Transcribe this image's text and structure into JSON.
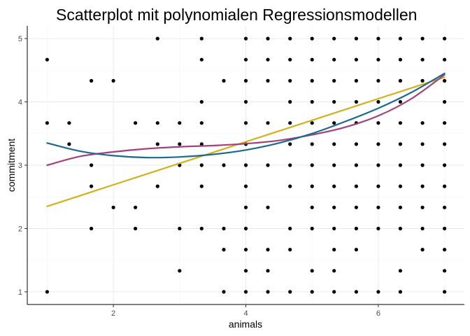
{
  "chart_data": {
    "type": "scatter",
    "title": "Scatterplot mit polynomialen Regressionsmodellen",
    "xlabel": "animals",
    "ylabel": "commitment",
    "xlim": [
      0.7,
      7.3
    ],
    "ylim": [
      0.8,
      5.2
    ],
    "x_ticks": [
      2,
      4,
      6
    ],
    "y_ticks": [
      1,
      2,
      3,
      4,
      5
    ],
    "grid": true,
    "points": [
      [
        1,
        4.667
      ],
      [
        1,
        3.667
      ],
      [
        1,
        1
      ],
      [
        1.333,
        3.667
      ],
      [
        1.333,
        3.333
      ],
      [
        1.667,
        4.333
      ],
      [
        1.667,
        3
      ],
      [
        1.667,
        2.667
      ],
      [
        1.667,
        2
      ],
      [
        2,
        4.333
      ],
      [
        2,
        2.333
      ],
      [
        2.333,
        3.667
      ],
      [
        2.333,
        2.333
      ],
      [
        2.333,
        2
      ],
      [
        2.667,
        5
      ],
      [
        2.667,
        3.667
      ],
      [
        2.667,
        3.333
      ],
      [
        2.667,
        2.667
      ],
      [
        3,
        3.667
      ],
      [
        3,
        3.333
      ],
      [
        3,
        3
      ],
      [
        3,
        2
      ],
      [
        3,
        1.333
      ],
      [
        3.333,
        5
      ],
      [
        3.333,
        4.667
      ],
      [
        3.333,
        4
      ],
      [
        3.333,
        3.667
      ],
      [
        3.333,
        3.333
      ],
      [
        3.333,
        3
      ],
      [
        3.333,
        2.667
      ],
      [
        3.333,
        2
      ],
      [
        3.667,
        4.333
      ],
      [
        3.667,
        3
      ],
      [
        3.667,
        2
      ],
      [
        3.667,
        1.667
      ],
      [
        3.667,
        1
      ],
      [
        4,
        5
      ],
      [
        4,
        4.667
      ],
      [
        4,
        4.333
      ],
      [
        4,
        4
      ],
      [
        4,
        3.667
      ],
      [
        4,
        3.333
      ],
      [
        4,
        3
      ],
      [
        4,
        2.667
      ],
      [
        4,
        2.333
      ],
      [
        4,
        2
      ],
      [
        4,
        1.667
      ],
      [
        4,
        1.333
      ],
      [
        4,
        1
      ],
      [
        4.333,
        5
      ],
      [
        4.333,
        4.667
      ],
      [
        4.333,
        4.333
      ],
      [
        4.333,
        3.667
      ],
      [
        4.333,
        3
      ],
      [
        4.333,
        2.333
      ],
      [
        4.333,
        1.667
      ],
      [
        4.333,
        1.333
      ],
      [
        4.333,
        1
      ],
      [
        4.667,
        5
      ],
      [
        4.667,
        4.667
      ],
      [
        4.667,
        4.333
      ],
      [
        4.667,
        4
      ],
      [
        4.667,
        3.667
      ],
      [
        4.667,
        3.333
      ],
      [
        4.667,
        3
      ],
      [
        4.667,
        2.667
      ],
      [
        4.667,
        2
      ],
      [
        4.667,
        1.667
      ],
      [
        4.667,
        1
      ],
      [
        5,
        5
      ],
      [
        5,
        4.667
      ],
      [
        5,
        4.333
      ],
      [
        5,
        4
      ],
      [
        5,
        3.667
      ],
      [
        5,
        3.333
      ],
      [
        5,
        3
      ],
      [
        5,
        2.667
      ],
      [
        5,
        2.333
      ],
      [
        5,
        2
      ],
      [
        5,
        1.333
      ],
      [
        5,
        1
      ],
      [
        5.333,
        5
      ],
      [
        5.333,
        4.667
      ],
      [
        5.333,
        4.333
      ],
      [
        5.333,
        4
      ],
      [
        5.333,
        3.667
      ],
      [
        5.333,
        3.333
      ],
      [
        5.333,
        3
      ],
      [
        5.333,
        2.667
      ],
      [
        5.333,
        2.333
      ],
      [
        5.333,
        2
      ],
      [
        5.333,
        1.667
      ],
      [
        5.333,
        1.333
      ],
      [
        5.333,
        1
      ],
      [
        5.667,
        5
      ],
      [
        5.667,
        4.667
      ],
      [
        5.667,
        4.333
      ],
      [
        5.667,
        4
      ],
      [
        5.667,
        3.667
      ],
      [
        5.667,
        3.333
      ],
      [
        5.667,
        3
      ],
      [
        5.667,
        2.667
      ],
      [
        5.667,
        2.333
      ],
      [
        5.667,
        2
      ],
      [
        5.667,
        1.667
      ],
      [
        5.667,
        1
      ],
      [
        6,
        5
      ],
      [
        6,
        4.667
      ],
      [
        6,
        4.333
      ],
      [
        6,
        4
      ],
      [
        6,
        3.667
      ],
      [
        6,
        3.333
      ],
      [
        6,
        3
      ],
      [
        6,
        2.667
      ],
      [
        6,
        2.333
      ],
      [
        6,
        2
      ],
      [
        6,
        1
      ],
      [
        6.333,
        5
      ],
      [
        6.333,
        4.667
      ],
      [
        6.333,
        4.333
      ],
      [
        6.333,
        4
      ],
      [
        6.333,
        3.667
      ],
      [
        6.333,
        3.333
      ],
      [
        6.333,
        3
      ],
      [
        6.333,
        2.667
      ],
      [
        6.333,
        2.333
      ],
      [
        6.333,
        2
      ],
      [
        6.333,
        1.333
      ],
      [
        6.333,
        1
      ],
      [
        6.667,
        5
      ],
      [
        6.667,
        4.667
      ],
      [
        6.667,
        4.333
      ],
      [
        6.667,
        3.667
      ],
      [
        6.667,
        3.333
      ],
      [
        6.667,
        3
      ],
      [
        6.667,
        2.667
      ],
      [
        6.667,
        2.333
      ],
      [
        6.667,
        2
      ],
      [
        6.667,
        1.667
      ],
      [
        7,
        5
      ],
      [
        7,
        4.667
      ],
      [
        7,
        4.333
      ],
      [
        7,
        4
      ],
      [
        7,
        3.667
      ],
      [
        7,
        3.333
      ],
      [
        7,
        3
      ],
      [
        7,
        2.667
      ],
      [
        7,
        2.333
      ],
      [
        7,
        2
      ],
      [
        7,
        1.667
      ],
      [
        7,
        1.333
      ],
      [
        7,
        1
      ]
    ],
    "series": [
      {
        "color": "#d4b01c",
        "x": [
          1,
          2,
          3,
          4,
          5,
          6,
          7
        ],
        "y": [
          2.35,
          2.69,
          3.03,
          3.37,
          3.71,
          4.05,
          4.39
        ]
      },
      {
        "color": "#a4407c",
        "x": [
          1,
          1.5,
          2,
          2.5,
          3,
          3.5,
          4,
          4.5,
          5,
          5.5,
          6,
          6.5,
          7
        ],
        "y": [
          3.0,
          3.14,
          3.21,
          3.26,
          3.29,
          3.31,
          3.34,
          3.39,
          3.48,
          3.6,
          3.78,
          4.05,
          4.43
        ]
      },
      {
        "color": "#1a6b8e",
        "x": [
          1,
          1.5,
          2,
          2.5,
          3,
          3.5,
          4,
          4.5,
          5,
          5.5,
          6,
          6.5,
          7
        ],
        "y": [
          3.35,
          3.22,
          3.15,
          3.12,
          3.13,
          3.17,
          3.24,
          3.35,
          3.5,
          3.69,
          3.9,
          4.15,
          4.45
        ]
      }
    ]
  }
}
